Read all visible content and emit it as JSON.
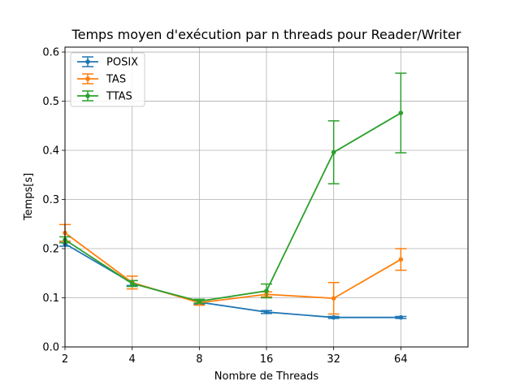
{
  "chart_data": {
    "type": "line",
    "title": "Temps moyen d'exécution par n threads pour Reader/Writer",
    "xlabel": "Nombre de Threads",
    "ylabel": "Temps[s]",
    "x": [
      2,
      4,
      8,
      16,
      32,
      64
    ],
    "x_tick_labels": [
      "2",
      "4",
      "8",
      "16",
      "32",
      "64"
    ],
    "x_scale": "log2",
    "xlim": [
      2,
      128
    ],
    "ylim": [
      0,
      0.61
    ],
    "y_ticks": [
      0.0,
      0.1,
      0.2,
      0.3,
      0.4,
      0.5,
      0.6
    ],
    "y_tick_labels": [
      "0.0",
      "0.1",
      "0.2",
      "0.3",
      "0.4",
      "0.5",
      "0.6"
    ],
    "grid": true,
    "legend_position": "top-left",
    "series": [
      {
        "name": "POSIX",
        "color": "#1f77b4",
        "values": [
          0.21,
          0.13,
          0.091,
          0.071,
          0.06,
          0.06
        ],
        "errors": [
          0.005,
          0.005,
          0.004,
          0.003,
          0.002,
          0.002
        ]
      },
      {
        "name": "TAS",
        "color": "#ff7f0e",
        "values": [
          0.232,
          0.131,
          0.09,
          0.107,
          0.099,
          0.178
        ],
        "errors": [
          0.017,
          0.013,
          0.005,
          0.005,
          0.032,
          0.022
        ]
      },
      {
        "name": "TTAS",
        "color": "#2ca02c",
        "values": [
          0.218,
          0.129,
          0.093,
          0.114,
          0.396,
          0.476
        ],
        "errors": [
          0.006,
          0.006,
          0.004,
          0.014,
          0.064,
          0.081
        ]
      }
    ]
  }
}
